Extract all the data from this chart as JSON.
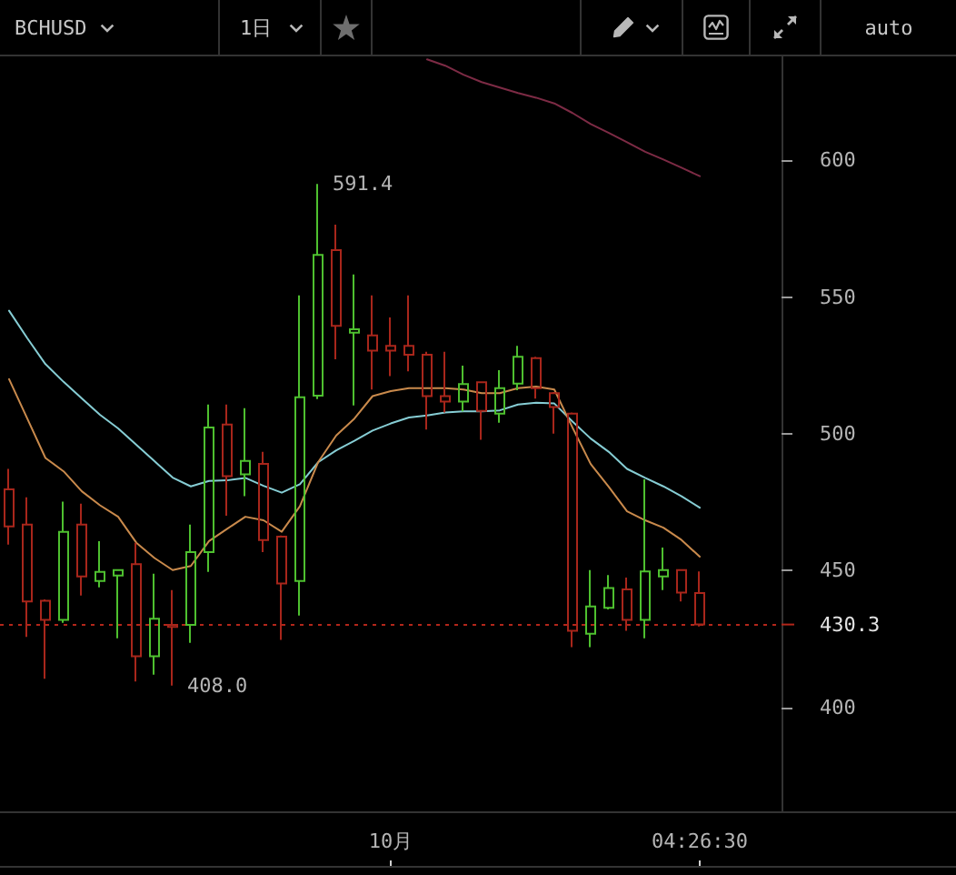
{
  "chart_data": {
    "type": "candlestick",
    "title": "BCHUSD",
    "subtitle": "1日",
    "categories": [
      null,
      null,
      null,
      null,
      null,
      null,
      null,
      null,
      null,
      null,
      null,
      null,
      null,
      null,
      null,
      null,
      null,
      null,
      null,
      null,
      null,
      "10月",
      null,
      null,
      null,
      null,
      null,
      null,
      null,
      null,
      null,
      null,
      null,
      null,
      null,
      null,
      null,
      null,
      "04:26:30"
    ],
    "ohlc": [
      [
        479.7,
        487.2,
        459.5,
        466.2
      ],
      [
        466.8,
        476.8,
        425.8,
        438.7
      ],
      [
        439.0,
        439.5,
        410.5,
        432.0
      ],
      [
        432.0,
        475.2,
        430.9,
        464.2
      ],
      [
        466.8,
        474.5,
        440.9,
        447.9
      ],
      [
        446.2,
        460.8,
        443.9,
        449.5
      ],
      [
        448.2,
        450.5,
        425.3,
        450.2
      ],
      [
        452.4,
        460.2,
        409.5,
        418.7
      ],
      [
        418.7,
        448.9,
        412.0,
        432.4
      ],
      [
        430.2,
        442.9,
        408.0,
        429.4
      ],
      [
        430.2,
        466.8,
        423.6,
        456.8
      ],
      [
        456.8,
        510.7,
        449.5,
        502.3
      ],
      [
        503.4,
        510.7,
        470.1,
        484.5
      ],
      [
        485.2,
        509.4,
        477.2,
        490.1
      ],
      [
        489.0,
        493.4,
        456.8,
        461.2
      ],
      [
        462.4,
        462.8,
        424.7,
        445.3
      ],
      [
        446.2,
        550.6,
        433.6,
        513.4
      ],
      [
        514.0,
        591.4,
        512.7,
        565.4
      ],
      [
        567.2,
        576.5,
        527.3,
        539.5
      ],
      [
        537.0,
        558.3,
        510.4,
        538.2
      ],
      [
        536.0,
        550.6,
        516.2,
        530.4
      ],
      [
        532.2,
        542.6,
        521.1,
        530.4
      ],
      [
        532.2,
        550.6,
        522.9,
        528.9
      ],
      [
        528.9,
        530.0,
        501.6,
        513.8
      ],
      [
        513.8,
        530.0,
        507.8,
        511.8
      ],
      [
        511.8,
        524.9,
        508.2,
        518.2
      ],
      [
        518.9,
        519.2,
        497.8,
        508.4
      ],
      [
        507.4,
        523.3,
        504.1,
        516.7
      ],
      [
        518.4,
        532.2,
        516.0,
        528.2
      ],
      [
        527.7,
        528.2,
        512.9,
        516.7
      ],
      [
        514.9,
        515.3,
        500.1,
        509.8
      ],
      [
        507.4,
        507.8,
        422.0,
        428.0
      ],
      [
        426.9,
        450.2,
        422.0,
        436.9
      ],
      [
        436.4,
        448.4,
        435.8,
        443.6
      ],
      [
        443.1,
        447.5,
        428.0,
        432.0
      ],
      [
        432.0,
        483.4,
        425.3,
        449.7
      ],
      [
        447.9,
        458.4,
        442.9,
        450.2
      ],
      [
        450.2,
        450.5,
        438.7,
        442.0
      ],
      [
        441.8,
        449.7,
        429.6,
        430.3
      ]
    ],
    "colors": [
      "#a8261b",
      "#a8261b",
      "#a8261b",
      "#4ec02f",
      "#a8261b",
      "#4ec02f",
      "#4ec02f",
      "#a8261b",
      "#4ec02f",
      "#a8261b",
      "#4ec02f",
      "#4ec02f",
      "#a8261b",
      "#4ec02f",
      "#a8261b",
      "#a8261b",
      "#4ec02f",
      "#4ec02f",
      "#a8261b",
      "#4ec02f",
      "#a8261b",
      "#a8261b",
      "#a8261b",
      "#a8261b",
      "#a8261b",
      "#4ec02f",
      "#a8261b",
      "#4ec02f",
      "#4ec02f",
      "#a8261b",
      "#a8261b",
      "#a8261b",
      "#4ec02f",
      "#4ec02f",
      "#a8261b",
      "#4ec02f",
      "#4ec02f",
      "#a8261b",
      "#a8261b"
    ],
    "series": [
      {
        "type": "line",
        "color": "#86cdd4",
        "values": [
          545,
          535,
          525.5,
          519,
          513,
          507,
          502,
          496,
          490,
          484,
          480.8,
          482.8,
          483,
          483.9,
          481,
          478.5,
          481.6,
          489.6,
          494,
          497.5,
          501.2,
          503.8,
          506.0,
          506.7,
          507.8,
          508.2,
          508.2,
          508.6,
          510.7,
          511.4,
          511.1,
          504.5,
          498.3,
          493.4,
          487.2,
          483.9,
          480.8,
          477.2,
          473.0
        ]
      },
      {
        "type": "line",
        "color": "#c98a4c",
        "values": [
          520,
          505.6,
          491.2,
          486.3,
          479.0,
          473.9,
          469.7,
          460.2,
          454.6,
          450.2,
          451.7,
          460.8,
          465.3,
          469.7,
          468.4,
          464.2,
          473.5,
          489.6,
          499.4,
          505.6,
          513.8,
          515.6,
          516.7,
          516.7,
          516.7,
          516.2,
          514.9,
          514.9,
          516.7,
          517.3,
          516.2,
          502.3,
          489.0,
          480.6,
          471.7,
          468.4,
          465.7,
          461.2,
          455.1
        ]
      },
      {
        "type": "line",
        "color": "#7d2b45",
        "values": [
          null,
          null,
          null,
          null,
          null,
          null,
          null,
          null,
          null,
          null,
          null,
          null,
          null,
          null,
          null,
          null,
          null,
          null,
          null,
          null,
          null,
          null,
          null,
          636.9,
          634.6,
          631.3,
          628.6,
          626.6,
          624.6,
          622.9,
          620.8,
          617.3,
          613.3,
          610.0,
          606.6,
          603.1,
          600.3,
          597.3,
          594.2
        ]
      }
    ],
    "ylim": [
      362,
      638
    ],
    "yticks": [
      400,
      450,
      500,
      550,
      600
    ],
    "ref_lines": [
      {
        "axis": "y",
        "value": 430.3,
        "label": "430.3",
        "color": "#b3261a",
        "line_style": "dotted"
      }
    ],
    "annotations": [
      "auto",
      "591.4",
      "408.0"
    ],
    "grid": false,
    "marker": "none"
  }
}
